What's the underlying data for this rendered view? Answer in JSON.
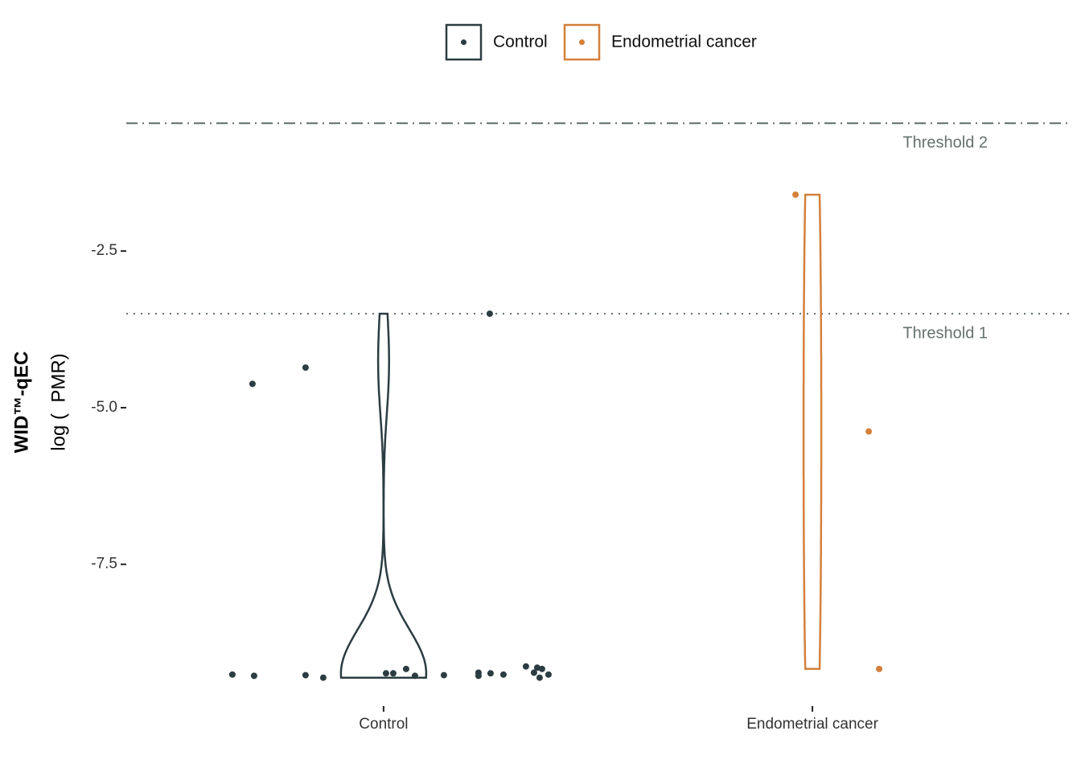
{
  "chart_data": {
    "type": "violin",
    "y_label": "WID™-qEC",
    "y_sublabel": "log (  PMR)",
    "categories": [
      "Control",
      "Endometrial cancer"
    ],
    "series": [
      {
        "name": "Control",
        "color": "#2b3d42",
        "values": [
          -9.26,
          -9.28,
          -9.27,
          -9.31,
          -9.24,
          -9.24,
          -9.17,
          -9.28,
          -9.27,
          -9.23,
          -9.28,
          -9.24,
          -9.26,
          -9.13,
          -9.23,
          -9.15,
          -9.31,
          -9.17,
          -9.26,
          -4.62,
          -4.36,
          -3.5
        ]
      },
      {
        "name": "Endometrial cancer",
        "color": "#d4803a",
        "values": [
          -1.6,
          -5.38,
          -9.17
        ]
      }
    ],
    "thresholds": [
      {
        "label": "Threshold 2",
        "value": -0.46,
        "style": "dashdot"
      },
      {
        "label": "Threshold 1",
        "value": -3.5,
        "style": "dotted"
      }
    ],
    "ylim": [
      -9.75,
      -0.02
    ],
    "yticks": [
      -2.5,
      {
        "value": -5,
        "label": "-5.0"
      },
      -7.5
    ],
    "legend": "top"
  }
}
